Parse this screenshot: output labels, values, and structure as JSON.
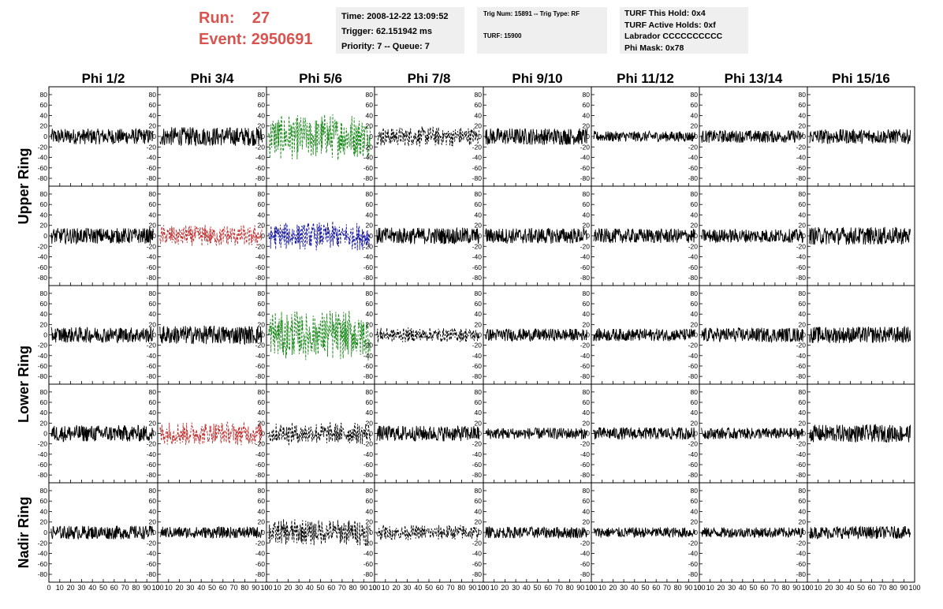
{
  "header": {
    "run_label": "Run:",
    "run_value": "27",
    "event_label": "Event:",
    "event_value": "2950691"
  },
  "info_boxes": {
    "time": "Time: 2008-12-22 13:09:52",
    "trigger": "Trigger: 62.151942 ms",
    "priority": "Priority: 7 -- Queue: 7",
    "trig_num": "Trig Num: 15891 -- Trig Type: RF",
    "turf": "TURF: 15900",
    "turf_hold": "TURF This Hold: 0x4",
    "turf_active": "TURF Active Holds: 0xf",
    "labrador": "Labrador CCCCCCCCCC",
    "phi_mask": "Phi Mask: 0x78"
  },
  "chart_data": {
    "type": "line",
    "title": "",
    "columns": [
      "Phi 1/2",
      "Phi 3/4",
      "Phi 5/6",
      "Phi 7/8",
      "Phi 9/10",
      "Phi 11/12",
      "Phi 13/14",
      "Phi 15/16"
    ],
    "ring_labels": [
      "Upper Ring",
      "Lower Ring",
      "Nadir Ring"
    ],
    "rows": 5,
    "xlim": [
      0,
      100
    ],
    "ylim": [
      -95,
      95
    ],
    "x_ticks": [
      0,
      10,
      20,
      30,
      40,
      50,
      60,
      70,
      80,
      90,
      100
    ],
    "y_ticks": [
      -80,
      -60,
      -40,
      -20,
      0,
      20,
      40,
      60,
      80
    ],
    "grid": false,
    "colors": {
      "normal": "#000000",
      "triggered_green": "#1a8a1a",
      "triggered_red": "#c03030",
      "triggered_blue": "#1a1aa0",
      "triggered_black": "#000000"
    },
    "panels": [
      {
        "row": 0,
        "col": 0,
        "style": "solid",
        "color": "normal",
        "amplitude": 15
      },
      {
        "row": 0,
        "col": 1,
        "style": "solid",
        "color": "normal",
        "amplitude": 18
      },
      {
        "row": 0,
        "col": 2,
        "style": "dashed",
        "color": "triggered_green",
        "amplitude": 45
      },
      {
        "row": 0,
        "col": 3,
        "style": "dashed",
        "color": "triggered_black",
        "amplitude": 20
      },
      {
        "row": 0,
        "col": 4,
        "style": "solid",
        "color": "normal",
        "amplitude": 16
      },
      {
        "row": 0,
        "col": 5,
        "style": "solid",
        "color": "normal",
        "amplitude": 10
      },
      {
        "row": 0,
        "col": 6,
        "style": "solid",
        "color": "normal",
        "amplitude": 12
      },
      {
        "row": 0,
        "col": 7,
        "style": "solid",
        "color": "normal",
        "amplitude": 14
      },
      {
        "row": 1,
        "col": 0,
        "style": "solid",
        "color": "normal",
        "amplitude": 15
      },
      {
        "row": 1,
        "col": 1,
        "style": "dashed",
        "color": "triggered_red",
        "amplitude": 22
      },
      {
        "row": 1,
        "col": 2,
        "style": "dashed",
        "color": "triggered_blue",
        "amplitude": 28
      },
      {
        "row": 1,
        "col": 3,
        "style": "solid",
        "color": "normal",
        "amplitude": 16
      },
      {
        "row": 1,
        "col": 4,
        "style": "solid",
        "color": "normal",
        "amplitude": 15
      },
      {
        "row": 1,
        "col": 5,
        "style": "solid",
        "color": "normal",
        "amplitude": 14
      },
      {
        "row": 1,
        "col": 6,
        "style": "solid",
        "color": "normal",
        "amplitude": 13
      },
      {
        "row": 1,
        "col": 7,
        "style": "solid",
        "color": "normal",
        "amplitude": 17
      },
      {
        "row": 2,
        "col": 0,
        "style": "solid",
        "color": "normal",
        "amplitude": 15
      },
      {
        "row": 2,
        "col": 1,
        "style": "solid",
        "color": "normal",
        "amplitude": 18
      },
      {
        "row": 2,
        "col": 2,
        "style": "dashed",
        "color": "triggered_green",
        "amplitude": 50
      },
      {
        "row": 2,
        "col": 3,
        "style": "dashed",
        "color": "triggered_black",
        "amplitude": 15
      },
      {
        "row": 2,
        "col": 4,
        "style": "solid",
        "color": "normal",
        "amplitude": 12
      },
      {
        "row": 2,
        "col": 5,
        "style": "solid",
        "color": "normal",
        "amplitude": 12
      },
      {
        "row": 2,
        "col": 6,
        "style": "solid",
        "color": "normal",
        "amplitude": 14
      },
      {
        "row": 2,
        "col": 7,
        "style": "solid",
        "color": "normal",
        "amplitude": 16
      },
      {
        "row": 3,
        "col": 0,
        "style": "solid",
        "color": "normal",
        "amplitude": 16
      },
      {
        "row": 3,
        "col": 1,
        "style": "dashed",
        "color": "triggered_red",
        "amplitude": 24
      },
      {
        "row": 3,
        "col": 2,
        "style": "dashed",
        "color": "triggered_black",
        "amplitude": 22
      },
      {
        "row": 3,
        "col": 3,
        "style": "solid",
        "color": "normal",
        "amplitude": 15
      },
      {
        "row": 3,
        "col": 4,
        "style": "solid",
        "color": "normal",
        "amplitude": 11
      },
      {
        "row": 3,
        "col": 5,
        "style": "solid",
        "color": "normal",
        "amplitude": 12
      },
      {
        "row": 3,
        "col": 6,
        "style": "solid",
        "color": "normal",
        "amplitude": 11
      },
      {
        "row": 3,
        "col": 7,
        "style": "solid",
        "color": "normal",
        "amplitude": 17
      },
      {
        "row": 4,
        "col": 0,
        "style": "solid",
        "color": "normal",
        "amplitude": 13
      },
      {
        "row": 4,
        "col": 1,
        "style": "solid",
        "color": "normal",
        "amplitude": 11
      },
      {
        "row": 4,
        "col": 2,
        "style": "dashed",
        "color": "triggered_black",
        "amplitude": 26
      },
      {
        "row": 4,
        "col": 3,
        "style": "dashed",
        "color": "triggered_black",
        "amplitude": 15
      },
      {
        "row": 4,
        "col": 4,
        "style": "solid",
        "color": "normal",
        "amplitude": 11
      },
      {
        "row": 4,
        "col": 5,
        "style": "solid",
        "color": "normal",
        "amplitude": 10
      },
      {
        "row": 4,
        "col": 6,
        "style": "solid",
        "color": "normal",
        "amplitude": 10
      },
      {
        "row": 4,
        "col": 7,
        "style": "solid",
        "color": "normal",
        "amplitude": 12
      }
    ]
  }
}
